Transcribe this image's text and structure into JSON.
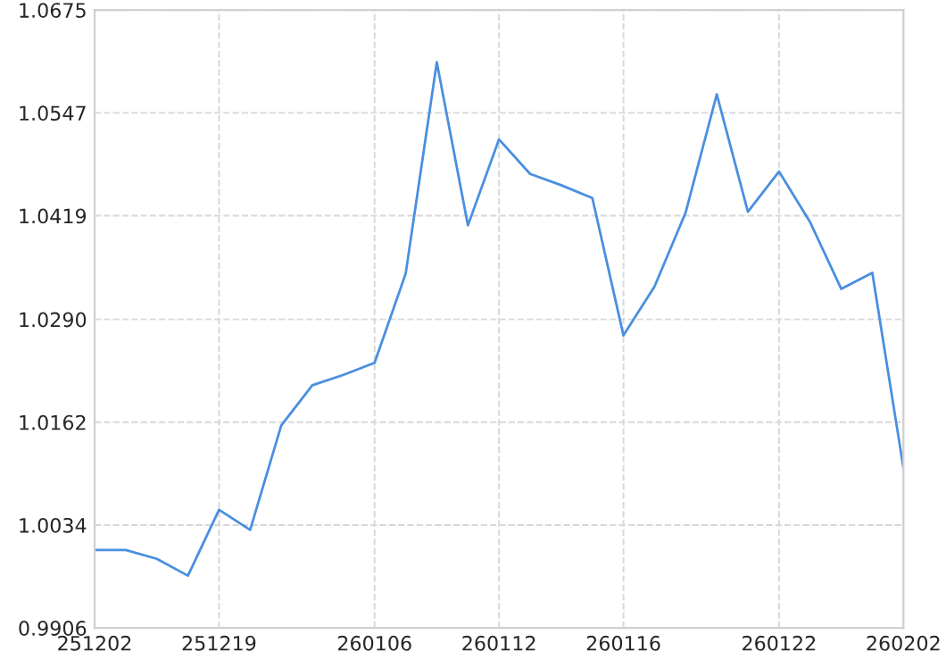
{
  "chart_data": {
    "type": "line",
    "categories": [
      "251202",
      null,
      null,
      null,
      "251219",
      null,
      null,
      null,
      null,
      "260106",
      null,
      null,
      null,
      "260112",
      null,
      null,
      null,
      "260116",
      null,
      null,
      null,
      null,
      "260122",
      null,
      null,
      null,
      "260202"
    ],
    "series": [
      {
        "color": "#4a8fe0",
        "values": [
          1.0003,
          1.0003,
          0.9992,
          0.9971,
          1.0053,
          1.0028,
          1.0158,
          1.0208,
          1.0221,
          1.0236,
          1.0347,
          1.061,
          1.0407,
          1.0514,
          1.0471,
          1.0457,
          1.0441,
          1.027,
          1.0331,
          1.0423,
          1.057,
          1.0424,
          1.0474,
          1.0411,
          1.0328,
          1.0348,
          1.0105
        ]
      }
    ],
    "ylim": [
      0.9906,
      1.0675
    ],
    "yticks": [
      {
        "value": 0.9906,
        "label": "0.9906"
      },
      {
        "value": 1.0034,
        "label": "1.0034"
      },
      {
        "value": 1.0162,
        "label": "1.0162"
      },
      {
        "value": 1.029,
        "label": "1.0290"
      },
      {
        "value": 1.0419,
        "label": "1.0419"
      },
      {
        "value": 1.0547,
        "label": "1.0547"
      },
      {
        "value": 1.0675,
        "label": "1.0675"
      }
    ],
    "grid": true,
    "legend": false,
    "marker": "none",
    "line_style": "solid"
  }
}
